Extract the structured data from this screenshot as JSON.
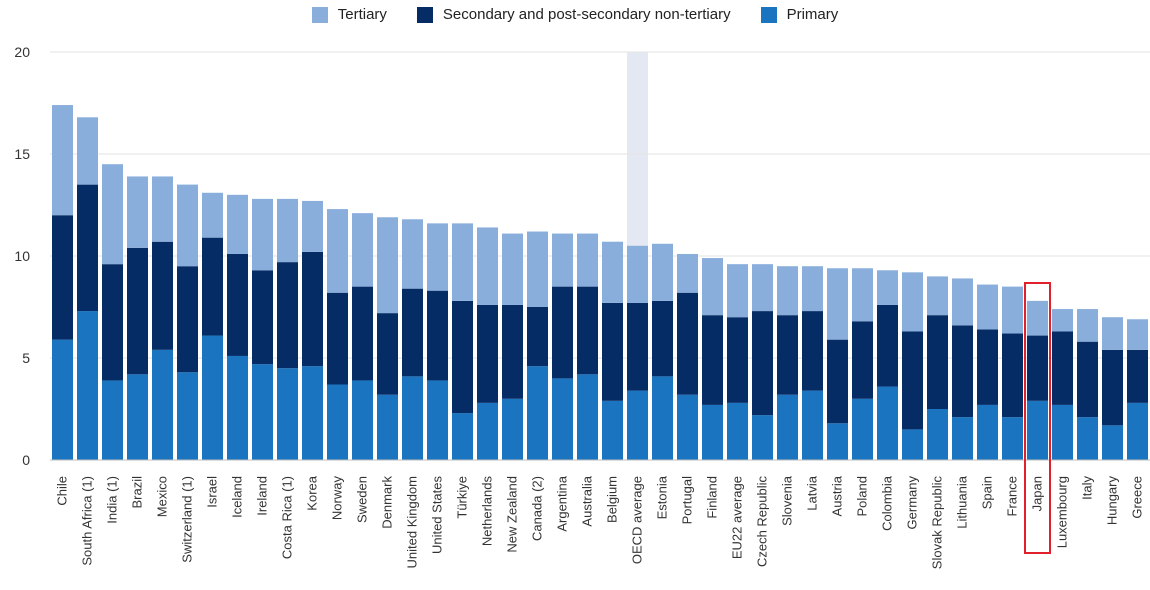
{
  "colors": {
    "tertiary": "#8aaedc",
    "secondary": "#062c66",
    "primary": "#1a74bf",
    "highlight_band": "#e4e8f2",
    "highlight_box": "#e0202a",
    "grid": "#e3e3e3"
  },
  "legend": [
    {
      "name": "Tertiary",
      "color_key": "tertiary"
    },
    {
      "name": "Secondary and post-secondary non-tertiary",
      "color_key": "secondary"
    },
    {
      "name": "Primary",
      "color_key": "primary"
    }
  ],
  "chart_data": {
    "type": "bar",
    "stacked": true,
    "grid": true,
    "legend_position": "top-center",
    "ylim": [
      0,
      20
    ],
    "yticks": [
      0,
      5,
      10,
      15,
      20
    ],
    "highlight_band_category": "OECD average",
    "highlight_box_category": "Japan",
    "categories": [
      "Chile",
      "South Africa (1)",
      "India (1)",
      "Brazil",
      "Mexico",
      "Switzerland (1)",
      "Israel",
      "Iceland",
      "Ireland",
      "Costa Rica (1)",
      "Korea",
      "Norway",
      "Sweden",
      "Denmark",
      "United Kingdom",
      "United States",
      "Türkiye",
      "Netherlands",
      "New Zealand",
      "Canada (2)",
      "Argentina",
      "Australia",
      "Belgium",
      "OECD average",
      "Estonia",
      "Portugal",
      "Finland",
      "EU22 average",
      "Czech Republic",
      "Slovenia",
      "Latvia",
      "Austria",
      "Poland",
      "Colombia",
      "Germany",
      "Slovak Republic",
      "Lithuania",
      "Spain",
      "France",
      "Japan",
      "Luxembourg",
      "Italy",
      "Hungary",
      "Greece"
    ],
    "series": [
      {
        "name": "Primary",
        "values": [
          5.9,
          7.3,
          3.9,
          4.2,
          5.4,
          4.3,
          6.1,
          5.1,
          4.7,
          4.5,
          4.6,
          3.7,
          3.9,
          3.2,
          4.1,
          3.9,
          2.3,
          2.8,
          3.0,
          4.6,
          4.0,
          4.2,
          2.9,
          3.4,
          4.1,
          3.2,
          2.7,
          2.8,
          2.2,
          3.2,
          3.4,
          1.8,
          3.0,
          3.6,
          1.5,
          2.5,
          2.1,
          2.7,
          2.1,
          2.9,
          2.7,
          2.1,
          1.7,
          2.8
        ]
      },
      {
        "name": "Secondary and post-secondary non-tertiary",
        "values": [
          6.1,
          6.2,
          5.7,
          6.2,
          5.3,
          5.2,
          4.8,
          5.0,
          4.6,
          5.2,
          5.6,
          4.5,
          4.6,
          4.0,
          4.3,
          4.4,
          5.5,
          4.8,
          4.6,
          2.9,
          4.5,
          4.3,
          4.8,
          4.3,
          3.7,
          5.0,
          4.4,
          4.2,
          5.1,
          3.9,
          3.9,
          4.1,
          3.8,
          4.0,
          4.8,
          4.6,
          4.5,
          3.7,
          4.1,
          3.2,
          3.6,
          3.7,
          3.7,
          2.6
        ]
      },
      {
        "name": "Tertiary",
        "values": [
          5.4,
          3.3,
          4.9,
          3.5,
          3.2,
          4.0,
          2.2,
          2.9,
          3.5,
          3.1,
          2.5,
          4.1,
          3.6,
          4.7,
          3.4,
          3.3,
          3.8,
          3.8,
          3.5,
          3.7,
          2.6,
          2.6,
          3.0,
          2.8,
          2.8,
          1.9,
          2.8,
          2.6,
          2.3,
          2.4,
          2.2,
          3.5,
          2.6,
          1.7,
          2.9,
          1.9,
          2.3,
          2.2,
          2.3,
          1.7,
          1.1,
          1.6,
          1.6,
          1.5
        ]
      }
    ]
  }
}
